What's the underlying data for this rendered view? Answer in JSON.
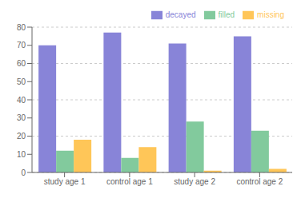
{
  "chart_data": {
    "type": "bar",
    "categories": [
      "study age 1",
      "control age 1",
      "study age 2",
      "control age 2"
    ],
    "series": [
      {
        "name": "decayed",
        "color": "#8884d8",
        "values": [
          70,
          77,
          71,
          75
        ]
      },
      {
        "name": "filled",
        "color": "#82ca9d",
        "values": [
          12,
          8,
          28,
          23
        ]
      },
      {
        "name": "missing",
        "color": "#ffc658",
        "values": [
          18,
          14,
          1,
          2
        ]
      }
    ],
    "ylim": [
      0,
      80
    ],
    "yticks": [
      0,
      10,
      20,
      30,
      40,
      50,
      60,
      70,
      80
    ],
    "grid": true,
    "legend": "upper right"
  }
}
